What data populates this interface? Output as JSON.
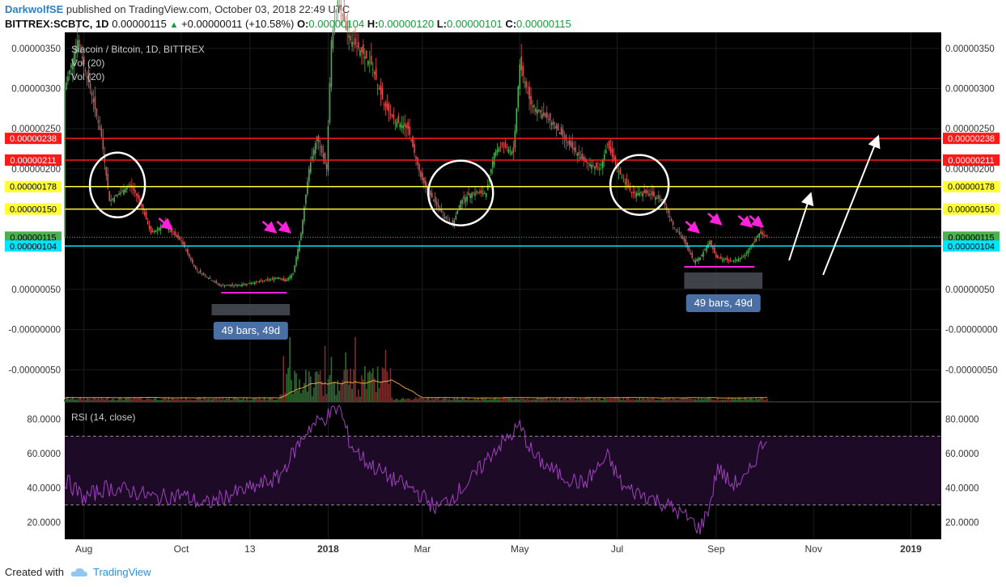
{
  "header": {
    "author": "DarkwolfSE",
    "published_text": "published on TradingView.com, October 03, 2018 22:49 UTC",
    "symbol": "BITTREX:SCBTC, 1D",
    "last": "0.00000115",
    "change": "+0.00000011 (+10.58%)",
    "o_label": "O:",
    "o_value": "0.00000104",
    "h_label": "H:",
    "h_value": "0.00000120",
    "l_label": "L:",
    "l_value": "0.00000101",
    "c_label": "C:",
    "c_value": "0.00000115"
  },
  "legend": {
    "title": "Siacoin / Bitcoin, 1D, BITTREX",
    "vol1": "Vol (20)",
    "vol2": "Vol (20)"
  },
  "rsi_label": "RSI (14, close)",
  "footer": {
    "created_with": "Created with",
    "brand": "TradingView"
  },
  "colors": {
    "background": "#000000",
    "up": "#4caf50",
    "down": "#e05050",
    "red_line": "#ff1a1a",
    "yellow_line": "#ffff33",
    "cyan_line": "#00e5ff",
    "magenta": "#ff22dd",
    "rsi_line": "#a040c0",
    "ma_line": "#e8a040"
  },
  "chart_data": [
    {
      "type": "candlestick",
      "title": "Siacoin / Bitcoin, 1D, BITTREX",
      "x_tick_labels": [
        "Aug",
        "Oct",
        "13",
        "2018",
        "Mar",
        "May",
        "Jul",
        "Sep",
        "Nov",
        "2019"
      ],
      "x_tick_dates": [
        "2017-08-01",
        "2017-10-01",
        "2017-11-13",
        "2018-01-01",
        "2018-03-01",
        "2018-05-01",
        "2018-07-01",
        "2018-09-01",
        "2018-11-01",
        "2019-01-01"
      ],
      "y_tick_labels": [
        "0.00000350",
        "0.00000300",
        "0.00000250",
        "0.00000200",
        "0.00000050",
        "-0.00000000",
        "-0.00000050"
      ],
      "ylim": [
        -9e-07,
        3.7e-06
      ],
      "price_path": [
        [
          "2017-07-20",
          3e-06
        ],
        [
          "2017-07-28",
          3.6e-06
        ],
        [
          "2017-08-05",
          3e-06
        ],
        [
          "2017-08-12",
          2.4e-06
        ],
        [
          "2017-08-17",
          1.6e-06
        ],
        [
          "2017-08-30",
          1.8e-06
        ],
        [
          "2017-09-05",
          1.6e-06
        ],
        [
          "2017-09-12",
          1.2e-06
        ],
        [
          "2017-09-20",
          1.3e-06
        ],
        [
          "2017-10-01",
          1.1e-06
        ],
        [
          "2017-10-10",
          7.5e-07
        ],
        [
          "2017-10-25",
          5.5e-07
        ],
        [
          "2017-11-05",
          5.5e-07
        ],
        [
          "2017-11-20",
          6e-07
        ],
        [
          "2017-12-01",
          6.5e-07
        ],
        [
          "2017-12-05",
          6e-07
        ],
        [
          "2017-12-10",
          7e-07
        ],
        [
          "2017-12-15",
          1.2e-06
        ],
        [
          "2017-12-20",
          2e-06
        ],
        [
          "2017-12-25",
          2.4e-06
        ],
        [
          "2017-12-31",
          2e-06
        ],
        [
          "2018-01-03",
          3.6e-06
        ],
        [
          "2018-01-07",
          4.1e-06
        ],
        [
          "2018-01-15",
          3.6e-06
        ],
        [
          "2018-01-20",
          3.5e-06
        ],
        [
          "2018-01-28",
          3.3e-06
        ],
        [
          "2018-02-05",
          2.8e-06
        ],
        [
          "2018-02-12",
          2.6e-06
        ],
        [
          "2018-02-20",
          2.5e-06
        ],
        [
          "2018-02-28",
          1.9e-06
        ],
        [
          "2018-03-05",
          1.7e-06
        ],
        [
          "2018-03-15",
          1.4e-06
        ],
        [
          "2018-03-20",
          1.3e-06
        ],
        [
          "2018-03-25",
          1.6e-06
        ],
        [
          "2018-04-01",
          1.7e-06
        ],
        [
          "2018-04-10",
          1.7e-06
        ],
        [
          "2018-04-15",
          2.2e-06
        ],
        [
          "2018-04-20",
          2.3e-06
        ],
        [
          "2018-04-27",
          2.2e-06
        ],
        [
          "2018-05-01",
          3.3e-06
        ],
        [
          "2018-05-08",
          2.8e-06
        ],
        [
          "2018-05-20",
          2.6e-06
        ],
        [
          "2018-06-01",
          2.3e-06
        ],
        [
          "2018-06-10",
          2.1e-06
        ],
        [
          "2018-06-20",
          2e-06
        ],
        [
          "2018-06-25",
          2.3e-06
        ],
        [
          "2018-07-01",
          2e-06
        ],
        [
          "2018-07-10",
          1.7e-06
        ],
        [
          "2018-07-20",
          1.7e-06
        ],
        [
          "2018-07-30",
          1.6e-06
        ],
        [
          "2018-08-05",
          1.3e-06
        ],
        [
          "2018-08-12",
          1.1e-06
        ],
        [
          "2018-08-18",
          8.5e-07
        ],
        [
          "2018-08-22",
          9e-07
        ],
        [
          "2018-08-28",
          1.1e-06
        ],
        [
          "2018-09-01",
          9e-07
        ],
        [
          "2018-09-10",
          8.5e-07
        ],
        [
          "2018-09-18",
          9e-07
        ],
        [
          "2018-09-25",
          1.1e-06
        ],
        [
          "2018-09-28",
          1.2e-06
        ],
        [
          "2018-10-03",
          1.15e-06
        ]
      ],
      "horizontal_levels": [
        {
          "value": 2.38e-06,
          "label": "0.00000238",
          "color": "#ff1a1a"
        },
        {
          "value": 2.11e-06,
          "label": "0.00000211",
          "color": "#ff1a1a"
        },
        {
          "value": 1.78e-06,
          "label": "0.00000178",
          "color": "#ffff33"
        },
        {
          "value": 1.5e-06,
          "label": "0.00000150",
          "color": "#ffff33"
        },
        {
          "value": 1.15e-06,
          "label": "0.00000115",
          "color": "#4caf50"
        },
        {
          "value": 1.04e-06,
          "label": "0.00000104",
          "color": "#00e5ff"
        }
      ],
      "annotations": [
        {
          "text": "49 bars, 49d",
          "from": "2017-10-20",
          "to": "2017-12-08"
        },
        {
          "text": "49 bars, 49d",
          "from": "2018-08-12",
          "to": "2018-09-30"
        }
      ]
    },
    {
      "type": "line",
      "title": "RSI (14, close)",
      "y_tick_labels": [
        "80.0000",
        "60.0000",
        "40.0000",
        "20.0000"
      ],
      "ylim": [
        10,
        90
      ],
      "bands": [
        70,
        30
      ],
      "path": [
        [
          "2017-07-20",
          45
        ],
        [
          "2017-08-01",
          34
        ],
        [
          "2017-08-15",
          40
        ],
        [
          "2017-09-01",
          38
        ],
        [
          "2017-09-15",
          34
        ],
        [
          "2017-10-01",
          36
        ],
        [
          "2017-10-15",
          30
        ],
        [
          "2017-11-01",
          36
        ],
        [
          "2017-11-15",
          40
        ],
        [
          "2017-12-01",
          46
        ],
        [
          "2017-12-10",
          60
        ],
        [
          "2017-12-20",
          75
        ],
        [
          "2018-01-01",
          82
        ],
        [
          "2018-01-08",
          87
        ],
        [
          "2018-01-15",
          65
        ],
        [
          "2018-01-25",
          55
        ],
        [
          "2018-02-10",
          45
        ],
        [
          "2018-02-25",
          38
        ],
        [
          "2018-03-10",
          28
        ],
        [
          "2018-03-20",
          35
        ],
        [
          "2018-04-01",
          45
        ],
        [
          "2018-04-15",
          62
        ],
        [
          "2018-04-25",
          70
        ],
        [
          "2018-05-01",
          76
        ],
        [
          "2018-05-10",
          58
        ],
        [
          "2018-05-25",
          48
        ],
        [
          "2018-06-10",
          42
        ],
        [
          "2018-06-25",
          58
        ],
        [
          "2018-07-05",
          40
        ],
        [
          "2018-07-20",
          35
        ],
        [
          "2018-08-01",
          30
        ],
        [
          "2018-08-15",
          22
        ],
        [
          "2018-08-22",
          16
        ],
        [
          "2018-08-28",
          30
        ],
        [
          "2018-09-02",
          52
        ],
        [
          "2018-09-10",
          42
        ],
        [
          "2018-09-20",
          45
        ],
        [
          "2018-09-28",
          62
        ],
        [
          "2018-10-03",
          70
        ]
      ]
    }
  ]
}
